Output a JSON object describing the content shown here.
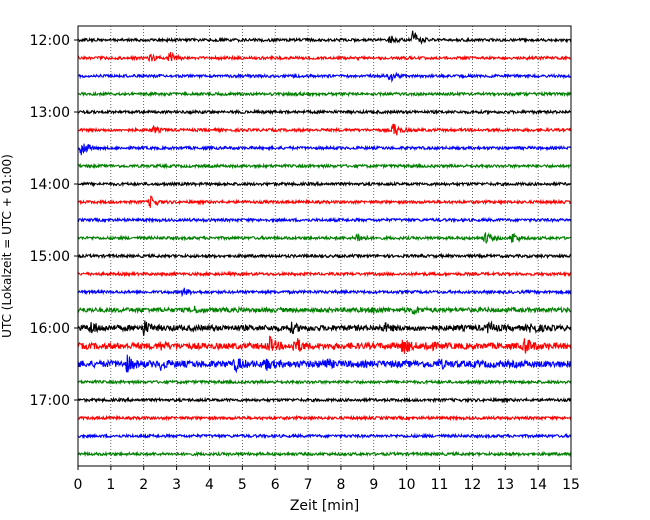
{
  "chart_data": {
    "type": "line",
    "title": "",
    "xlabel": "Zeit  [min]",
    "ylabel": "UTC (Lokalzeit = UTC + 01:00)",
    "xlim": [
      0,
      15
    ],
    "x_ticks": [
      "0",
      "1",
      "2",
      "3",
      "4",
      "5",
      "6",
      "7",
      "8",
      "9",
      "10",
      "11",
      "12",
      "13",
      "14",
      "15"
    ],
    "y_ticks": [
      "12:00",
      "13:00",
      "14:00",
      "15:00",
      "16:00",
      "17:00"
    ],
    "grid": "vertical dotted",
    "trace_interval_minutes": 15,
    "colors": [
      "#000000",
      "#ff0000",
      "#0000ff",
      "#008000"
    ],
    "traces": [
      {
        "start": "12:00",
        "color": "#000000",
        "amplitude": 1.0,
        "events": [
          {
            "t": 10.2,
            "amp": 11
          },
          {
            "t": 9.5,
            "amp": 4
          }
        ]
      },
      {
        "start": "12:15",
        "color": "#ff0000",
        "amplitude": 1.0,
        "events": [
          {
            "t": 2.8,
            "amp": 6
          },
          {
            "t": 2.2,
            "amp": 3
          }
        ]
      },
      {
        "start": "12:30",
        "color": "#0000ff",
        "amplitude": 1.0,
        "events": [
          {
            "t": 9.5,
            "amp": 5
          }
        ]
      },
      {
        "start": "12:45",
        "color": "#008000",
        "amplitude": 1.0,
        "events": []
      },
      {
        "start": "13:00",
        "color": "#000000",
        "amplitude": 1.0,
        "events": []
      },
      {
        "start": "13:15",
        "color": "#ff0000",
        "amplitude": 1.0,
        "events": [
          {
            "t": 9.6,
            "amp": 8
          },
          {
            "t": 2.3,
            "amp": 3
          }
        ]
      },
      {
        "start": "13:30",
        "color": "#0000ff",
        "amplitude": 1.0,
        "events": [
          {
            "t": 0.1,
            "amp": 9
          }
        ]
      },
      {
        "start": "13:45",
        "color": "#008000",
        "amplitude": 1.0,
        "events": []
      },
      {
        "start": "14:00",
        "color": "#000000",
        "amplitude": 1.0,
        "events": []
      },
      {
        "start": "14:15",
        "color": "#ff0000",
        "amplitude": 1.0,
        "events": [
          {
            "t": 2.2,
            "amp": 6
          }
        ]
      },
      {
        "start": "14:30",
        "color": "#0000ff",
        "amplitude": 1.0,
        "events": []
      },
      {
        "start": "14:45",
        "color": "#008000",
        "amplitude": 1.0,
        "events": [
          {
            "t": 8.5,
            "amp": 5
          },
          {
            "t": 12.4,
            "amp": 6
          },
          {
            "t": 13.2,
            "amp": 6
          }
        ]
      },
      {
        "start": "15:00",
        "color": "#000000",
        "amplitude": 1.0,
        "events": []
      },
      {
        "start": "15:15",
        "color": "#ff0000",
        "amplitude": 1.0,
        "events": []
      },
      {
        "start": "15:30",
        "color": "#0000ff",
        "amplitude": 1.0,
        "events": [
          {
            "t": 3.2,
            "amp": 4
          }
        ]
      },
      {
        "start": "15:45",
        "color": "#008000",
        "amplitude": 1.6,
        "events": [
          {
            "t": 10.2,
            "amp": 4
          },
          {
            "t": 9.0,
            "amp": 3
          },
          {
            "t": 3.5,
            "amp": 3
          }
        ]
      },
      {
        "start": "16:00",
        "color": "#000000",
        "amplitude": 2.0,
        "events": [
          {
            "t": 0.4,
            "amp": 6
          },
          {
            "t": 2.0,
            "amp": 7
          },
          {
            "t": 12.5,
            "amp": 5
          },
          {
            "t": 13.8,
            "amp": 5
          },
          {
            "t": 6.5,
            "amp": 4
          },
          {
            "t": 9.3,
            "amp": 4
          }
        ]
      },
      {
        "start": "16:15",
        "color": "#ff0000",
        "amplitude": 2.2,
        "events": [
          {
            "t": 5.8,
            "amp": 9
          },
          {
            "t": 6.6,
            "amp": 9
          },
          {
            "t": 9.9,
            "amp": 8
          },
          {
            "t": 13.6,
            "amp": 8
          },
          {
            "t": 10.6,
            "amp": 5
          },
          {
            "t": 2.5,
            "amp": 3
          }
        ]
      },
      {
        "start": "16:30",
        "color": "#0000ff",
        "amplitude": 2.4,
        "events": [
          {
            "t": 1.5,
            "amp": 7
          },
          {
            "t": 4.8,
            "amp": 6
          },
          {
            "t": 5.7,
            "amp": 5
          },
          {
            "t": 7.5,
            "amp": 4
          },
          {
            "t": 2.5,
            "amp": 4
          },
          {
            "t": 11.0,
            "amp": 3
          }
        ]
      },
      {
        "start": "16:45",
        "color": "#008000",
        "amplitude": 1.0,
        "events": []
      },
      {
        "start": "17:00",
        "color": "#000000",
        "amplitude": 1.0,
        "events": []
      },
      {
        "start": "17:15",
        "color": "#ff0000",
        "amplitude": 1.0,
        "events": []
      },
      {
        "start": "17:30",
        "color": "#0000ff",
        "amplitude": 1.0,
        "events": []
      },
      {
        "start": "17:45",
        "color": "#008000",
        "amplitude": 1.0,
        "events": []
      }
    ]
  }
}
